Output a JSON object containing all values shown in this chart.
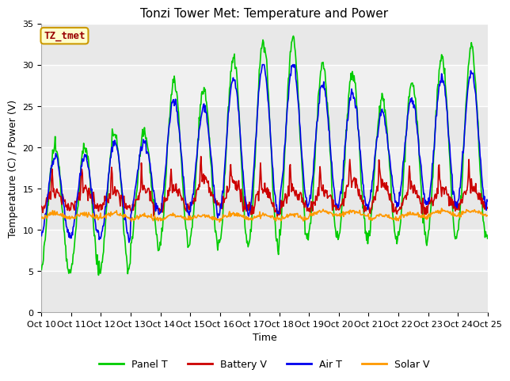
{
  "title": "Tonzi Tower Met: Temperature and Power",
  "xlabel": "Time",
  "ylabel": "Temperature (C) / Power (V)",
  "xlim": [
    0,
    360
  ],
  "ylim": [
    0,
    35
  ],
  "yticks": [
    0,
    5,
    10,
    15,
    20,
    25,
    30,
    35
  ],
  "xtick_positions": [
    0,
    24,
    48,
    72,
    96,
    120,
    144,
    168,
    192,
    216,
    240,
    264,
    288,
    312,
    336,
    360
  ],
  "xtick_labels": [
    "Oct 10",
    "Oct 11",
    "Oct 12",
    "Oct 13",
    "Oct 14",
    "Oct 15",
    "Oct 16",
    "Oct 17",
    "Oct 18",
    "Oct 19",
    "Oct 20",
    "Oct 21",
    "Oct 22",
    "Oct 23",
    "Oct 24",
    "Oct 25"
  ],
  "legend_entries": [
    "Panel T",
    "Battery V",
    "Air T",
    "Solar V"
  ],
  "colors": {
    "panel_t": "#00cc00",
    "battery_v": "#cc0000",
    "air_t": "#0000ee",
    "solar_v": "#ff9900"
  },
  "bg_color_light": "#ebebeb",
  "bg_color_dark": "#d8d8d8",
  "bg_white": "#f5f5f5",
  "annotation_text": "TZ_tmet",
  "annotation_bg": "#ffffcc",
  "annotation_border": "#cc9900",
  "annotation_text_color": "#990000",
  "grid_color": "#ffffff",
  "title_fontsize": 11,
  "axis_fontsize": 9,
  "tick_fontsize": 8,
  "legend_fontsize": 9,
  "linewidth": 1.2
}
